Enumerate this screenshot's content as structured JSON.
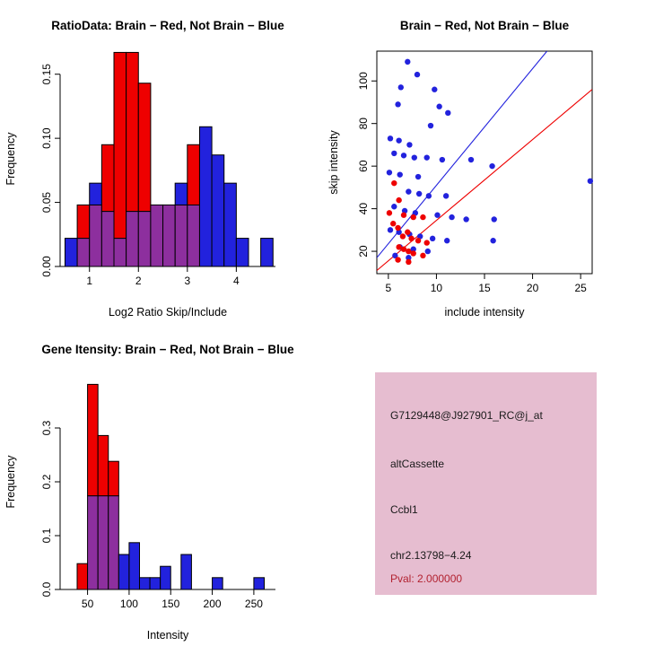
{
  "page": {
    "background": "#FFFFFF"
  },
  "colors": {
    "red": "#EE0000",
    "blue": "#2222DD",
    "overlap": "#8D2F9E",
    "axis": "#000000"
  },
  "chart_data": [
    {
      "id": "ratio_hist",
      "type": "histogram-overlay",
      "title": "RatioData: Brain − Red, Not Brain − Blue",
      "xlabel": "Log2 Ratio Skip/Include",
      "ylabel": "Frequency",
      "xlim": [
        0.4,
        4.8
      ],
      "ylim": [
        0,
        0.168
      ],
      "bin_width": 0.25,
      "x_ticks": [
        {
          "v": 1,
          "label": "1"
        },
        {
          "v": 2,
          "label": "2"
        },
        {
          "v": 3,
          "label": "3"
        },
        {
          "v": 4,
          "label": "4"
        }
      ],
      "y_ticks": [
        {
          "v": 0,
          "label": "0.00"
        },
        {
          "v": 0.05,
          "label": "0.05"
        },
        {
          "v": 0.1,
          "label": "0.10"
        },
        {
          "v": 0.15,
          "label": "0.15"
        }
      ],
      "series": [
        {
          "name": "Brain",
          "color_key": "red",
          "bins": [
            {
              "x": 0.75,
              "h": 0.048
            },
            {
              "x": 1.0,
              "h": 0.048
            },
            {
              "x": 1.25,
              "h": 0.095
            },
            {
              "x": 1.5,
              "h": 0.167
            },
            {
              "x": 1.75,
              "h": 0.167
            },
            {
              "x": 2.0,
              "h": 0.143
            },
            {
              "x": 2.25,
              "h": 0.048
            },
            {
              "x": 2.5,
              "h": 0.048
            },
            {
              "x": 2.75,
              "h": 0.048
            },
            {
              "x": 3.0,
              "h": 0.095
            }
          ]
        },
        {
          "name": "Not Brain",
          "color_key": "blue",
          "bins": [
            {
              "x": 0.5,
              "h": 0.022
            },
            {
              "x": 0.75,
              "h": 0.022
            },
            {
              "x": 1.0,
              "h": 0.065
            },
            {
              "x": 1.25,
              "h": 0.043
            },
            {
              "x": 1.5,
              "h": 0.022
            },
            {
              "x": 1.75,
              "h": 0.043
            },
            {
              "x": 2.0,
              "h": 0.043
            },
            {
              "x": 2.25,
              "h": 0.048
            },
            {
              "x": 2.5,
              "h": 0.048
            },
            {
              "x": 2.75,
              "h": 0.065
            },
            {
              "x": 3.0,
              "h": 0.048
            },
            {
              "x": 3.25,
              "h": 0.109
            },
            {
              "x": 3.5,
              "h": 0.087
            },
            {
              "x": 3.75,
              "h": 0.065
            },
            {
              "x": 4.0,
              "h": 0.022
            },
            {
              "x": 4.5,
              "h": 0.022
            }
          ]
        }
      ]
    },
    {
      "id": "intensity_scatter",
      "type": "scatter",
      "title": "Brain − Red, Not Brain − Blue",
      "xlabel": "include intensity",
      "ylabel": "skip intensity",
      "xlim": [
        3.8,
        26.2
      ],
      "ylim": [
        9.5,
        114
      ],
      "x_ticks": [
        {
          "v": 5,
          "label": "5"
        },
        {
          "v": 10,
          "label": "10"
        },
        {
          "v": 15,
          "label": "15"
        },
        {
          "v": 20,
          "label": "20"
        },
        {
          "v": 25,
          "label": "25"
        }
      ],
      "y_ticks": [
        {
          "v": 20,
          "label": "20"
        },
        {
          "v": 40,
          "label": "40"
        },
        {
          "v": 60,
          "label": "60"
        },
        {
          "v": 80,
          "label": "80"
        },
        {
          "v": 100,
          "label": "100"
        }
      ],
      "series": [
        {
          "name": "Not Brain",
          "color_key": "blue",
          "points": [
            [
              7.0,
              109
            ],
            [
              6.3,
              97
            ],
            [
              8.0,
              103
            ],
            [
              9.8,
              96
            ],
            [
              6.0,
              89
            ],
            [
              10.3,
              88
            ],
            [
              11.2,
              85
            ],
            [
              9.4,
              79
            ],
            [
              5.2,
              73
            ],
            [
              6.1,
              72
            ],
            [
              7.2,
              70
            ],
            [
              5.6,
              66
            ],
            [
              6.6,
              65
            ],
            [
              7.7,
              64
            ],
            [
              9.0,
              64
            ],
            [
              10.6,
              63
            ],
            [
              13.6,
              63
            ],
            [
              5.1,
              57
            ],
            [
              6.2,
              56
            ],
            [
              8.1,
              55
            ],
            [
              15.8,
              60
            ],
            [
              26.0,
              53
            ],
            [
              7.1,
              48
            ],
            [
              8.2,
              47
            ],
            [
              9.2,
              46
            ],
            [
              11.0,
              46
            ],
            [
              5.6,
              41
            ],
            [
              6.7,
              39
            ],
            [
              7.8,
              38
            ],
            [
              10.1,
              37
            ],
            [
              11.6,
              36
            ],
            [
              13.1,
              35
            ],
            [
              16.0,
              35
            ],
            [
              5.2,
              30
            ],
            [
              6.1,
              29
            ],
            [
              7.2,
              28
            ],
            [
              8.3,
              27
            ],
            [
              9.6,
              26
            ],
            [
              11.1,
              25
            ],
            [
              15.9,
              25
            ],
            [
              6.2,
              22
            ],
            [
              7.6,
              21
            ],
            [
              9.1,
              20
            ],
            [
              5.7,
              18
            ],
            [
              7.1,
              17
            ]
          ]
        },
        {
          "name": "Brain",
          "color_key": "red",
          "points": [
            [
              5.6,
              52
            ],
            [
              6.1,
              44
            ],
            [
              5.1,
              38
            ],
            [
              6.6,
              37
            ],
            [
              7.6,
              36
            ],
            [
              8.6,
              36
            ],
            [
              5.5,
              33
            ],
            [
              6.0,
              31
            ],
            [
              7.0,
              29
            ],
            [
              6.5,
              27
            ],
            [
              7.4,
              26
            ],
            [
              8.1,
              25
            ],
            [
              9.0,
              24
            ],
            [
              6.1,
              22
            ],
            [
              6.6,
              21
            ],
            [
              7.1,
              20
            ],
            [
              7.6,
              19
            ],
            [
              8.6,
              18
            ],
            [
              6.0,
              16
            ],
            [
              7.1,
              15
            ]
          ]
        }
      ],
      "lines": [
        {
          "color_key": "blue",
          "x1": 3.8,
          "y1": 17,
          "x2": 21.5,
          "y2": 114
        },
        {
          "color_key": "red",
          "x1": 3.8,
          "y1": 11,
          "x2": 26.2,
          "y2": 96
        }
      ]
    },
    {
      "id": "gene_hist",
      "type": "histogram-overlay",
      "title": "Gene Itensity: Brain − Red, Not Brain − Blue",
      "xlabel": "Intensity",
      "ylabel": "Frequency",
      "xlim": [
        17,
        276
      ],
      "ylim": [
        0,
        0.4
      ],
      "bin_width": 12.5,
      "x_ticks": [
        {
          "v": 50,
          "label": "50"
        },
        {
          "v": 100,
          "label": "100"
        },
        {
          "v": 150,
          "label": "150"
        },
        {
          "v": 200,
          "label": "200"
        },
        {
          "v": 250,
          "label": "250"
        }
      ],
      "y_ticks": [
        {
          "v": 0,
          "label": "0.0"
        },
        {
          "v": 0.1,
          "label": "0.1"
        },
        {
          "v": 0.2,
          "label": "0.2"
        },
        {
          "v": 0.3,
          "label": "0.3"
        }
      ],
      "series": [
        {
          "name": "Brain",
          "color_key": "red",
          "bins": [
            {
              "x": 37.5,
              "h": 0.048
            },
            {
              "x": 50,
              "h": 0.381
            },
            {
              "x": 62.5,
              "h": 0.286
            },
            {
              "x": 75,
              "h": 0.238
            }
          ]
        },
        {
          "name": "Not Brain",
          "color_key": "blue",
          "bins": [
            {
              "x": 50,
              "h": 0.174
            },
            {
              "x": 62.5,
              "h": 0.174
            },
            {
              "x": 75,
              "h": 0.174
            },
            {
              "x": 87.5,
              "h": 0.065
            },
            {
              "x": 100,
              "h": 0.087
            },
            {
              "x": 112.5,
              "h": 0.022
            },
            {
              "x": 125,
              "h": 0.022
            },
            {
              "x": 137.5,
              "h": 0.043
            },
            {
              "x": 162.5,
              "h": 0.065
            },
            {
              "x": 200,
              "h": 0.022
            },
            {
              "x": 250,
              "h": 0.022
            }
          ]
        }
      ]
    }
  ],
  "info_panel": {
    "bg": "#E6BDD0",
    "lines": [
      {
        "text": "G7129448@J927901_RC@j_at",
        "color": "#1A1A1A"
      },
      {
        "text": "altCassette",
        "color": "#1A1A1A"
      },
      {
        "text": "Ccbl1",
        "color": "#1A1A1A"
      },
      {
        "text": "chr2.13798−4.24",
        "color": "#1A1A1A"
      },
      {
        "text": "Pval: 2.000000",
        "color": "#B22230"
      }
    ]
  }
}
